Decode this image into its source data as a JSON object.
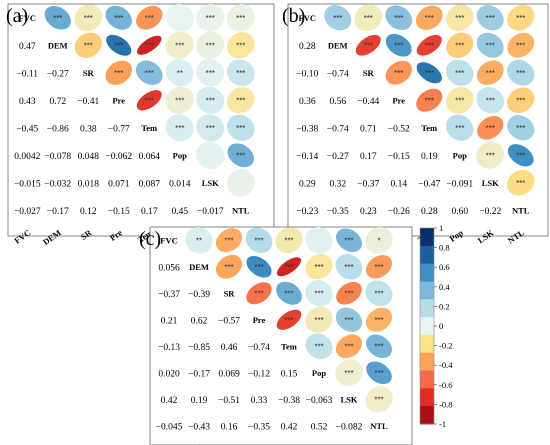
{
  "variables": [
    "FVC",
    "DEM",
    "SR",
    "Pre",
    "Tem",
    "Pop",
    "LSK",
    "NTL"
  ],
  "colorbar": {
    "ticks": [
      "1",
      "0.8",
      "0.6",
      "0.4",
      "0.2",
      "0",
      "-0.2",
      "-0.4",
      "-0.6",
      "-0.8",
      "-1"
    ],
    "colors": [
      "#a50f15",
      "#de2d26",
      "#f4694a",
      "#fca35a",
      "#fde28a",
      "#e7f4f2",
      "#b7dde8",
      "#7fb8da",
      "#3f8fc4",
      "#1a5f9c",
      "#08306b"
    ]
  },
  "chart_data": [
    {
      "type": "heatmap",
      "panel": "(a)",
      "variables": [
        "FVC",
        "DEM",
        "SR",
        "Pre",
        "Tem",
        "Pop",
        "LSK",
        "NTL"
      ],
      "values": [
        [
          1,
          0.47,
          -0.11,
          0.43,
          -0.45,
          0.0042,
          -0.015,
          -0.027
        ],
        [
          0.47,
          1,
          -0.27,
          0.72,
          -0.86,
          -0.078,
          -0.032,
          -0.17
        ],
        [
          -0.11,
          -0.27,
          1,
          -0.41,
          0.38,
          0.048,
          0.018,
          0.12
        ],
        [
          0.43,
          0.72,
          -0.41,
          1,
          -0.77,
          -0.062,
          0.071,
          -0.15
        ],
        [
          -0.45,
          -0.86,
          0.38,
          -0.77,
          1,
          0.064,
          0.087,
          0.17
        ],
        [
          0.0042,
          -0.078,
          0.048,
          -0.062,
          0.064,
          1,
          0.014,
          0.45
        ],
        [
          -0.015,
          -0.032,
          0.018,
          0.071,
          0.087,
          0.014,
          1,
          -0.017
        ],
        [
          -0.027,
          -0.17,
          0.12,
          -0.15,
          0.17,
          0.45,
          -0.017,
          1
        ]
      ],
      "labels": [
        [
          "FVC",
          "***",
          "***",
          "***",
          "***",
          "",
          "***",
          "***"
        ],
        [
          "0.47",
          "DEM",
          "***",
          "***",
          "***",
          "***",
          "***",
          "***"
        ],
        [
          "−0.11",
          "−0.27",
          "SR",
          "***",
          "***",
          "**",
          "***",
          "***"
        ],
        [
          "0.43",
          "0.72",
          "−0.41",
          "Pre",
          "***",
          "***",
          "***",
          "***"
        ],
        [
          "−0.45",
          "−0.86",
          "0.38",
          "−0.77",
          "Tem",
          "***",
          "***",
          "***"
        ],
        [
          "0.0042",
          "−0.078",
          "0.048",
          "−0.062",
          "0.064",
          "Pop",
          "",
          "***"
        ],
        [
          "−0.015",
          "−0.032",
          "0.018",
          "0.071",
          "0.087",
          "0.014",
          "LSK",
          ""
        ],
        [
          "−0.027",
          "−0.17",
          "0.12",
          "−0.15",
          "0.17",
          "0.45",
          "−0.017",
          "NTL"
        ]
      ]
    },
    {
      "type": "heatmap",
      "panel": "(b)",
      "variables": [
        "FVC",
        "DEM",
        "SR",
        "Pre",
        "Tem",
        "Pop",
        "LSK",
        "NTL"
      ],
      "values": [
        [
          1,
          0.28,
          -0.1,
          0.36,
          -0.38,
          -0.14,
          0.29,
          -0.23
        ],
        [
          0.28,
          1,
          -0.74,
          0.56,
          -0.74,
          -0.27,
          0.32,
          -0.35
        ],
        [
          -0.1,
          -0.74,
          1,
          -0.44,
          0.71,
          0.17,
          -0.37,
          0.23
        ],
        [
          0.36,
          0.56,
          -0.44,
          1,
          -0.52,
          -0.15,
          0.14,
          -0.26
        ],
        [
          -0.38,
          -0.74,
          0.71,
          -0.52,
          1,
          0.19,
          -0.47,
          0.28
        ],
        [
          -0.14,
          -0.27,
          0.17,
          -0.15,
          0.19,
          1,
          -0.091,
          0.6
        ],
        [
          0.29,
          0.32,
          -0.37,
          0.14,
          -0.47,
          -0.091,
          1,
          -0.22
        ],
        [
          -0.23,
          -0.35,
          0.23,
          -0.26,
          0.28,
          0.6,
          -0.22,
          1
        ]
      ],
      "labels": [
        [
          "FVC",
          "***",
          "***",
          "***",
          "***",
          "***",
          "***",
          "***"
        ],
        [
          "0.28",
          "DEM",
          "***",
          "***",
          "***",
          "***",
          "***",
          "***"
        ],
        [
          "−0.10",
          "−0.74",
          "SR",
          "***",
          "***",
          "***",
          "***",
          "***"
        ],
        [
          "0.36",
          "0.56",
          "−0.44",
          "Pre",
          "***",
          "***",
          "***",
          "***"
        ],
        [
          "−0.38",
          "−0.74",
          "0.71",
          "−0.52",
          "Tem",
          "***",
          "***",
          "***"
        ],
        [
          "−0.14",
          "−0.27",
          "0.17",
          "−0.15",
          "0.19",
          "Pop",
          "***",
          "***"
        ],
        [
          "0.29",
          "0.32",
          "−0.37",
          "0.14",
          "−0.47",
          "−0.091",
          "LSK",
          "***"
        ],
        [
          "−0.23",
          "−0.35",
          "0.23",
          "−0.26",
          "0.28",
          "0.60",
          "−0.22",
          "NTL"
        ]
      ]
    },
    {
      "type": "heatmap",
      "panel": "(c)",
      "variables": [
        "FVC",
        "DEM",
        "SR",
        "Pre",
        "Tem",
        "Pop",
        "LSK",
        "NTL"
      ],
      "values": [
        [
          1,
          0.056,
          -0.37,
          0.21,
          -0.13,
          0.02,
          0.42,
          -0.045
        ],
        [
          0.056,
          1,
          -0.39,
          0.62,
          -0.85,
          -0.17,
          0.19,
          -0.43
        ],
        [
          -0.37,
          -0.39,
          1,
          -0.57,
          0.46,
          0.069,
          -0.51,
          0.16
        ],
        [
          0.21,
          0.62,
          -0.57,
          1,
          -0.74,
          -0.12,
          0.33,
          -0.35
        ],
        [
          -0.13,
          -0.85,
          0.46,
          -0.74,
          1,
          0.15,
          -0.38,
          0.42
        ],
        [
          0.02,
          -0.17,
          0.069,
          -0.12,
          0.15,
          1,
          -0.063,
          0.52
        ],
        [
          0.42,
          0.19,
          -0.51,
          0.33,
          -0.38,
          -0.063,
          1,
          -0.082
        ],
        [
          -0.045,
          -0.43,
          0.16,
          -0.35,
          0.42,
          0.52,
          -0.082,
          1
        ]
      ],
      "labels": [
        [
          "FVC",
          "**",
          "***",
          "***",
          "***",
          "",
          "***",
          "*"
        ],
        [
          "0.056",
          "DEM",
          "***",
          "***",
          "***",
          "***",
          "***",
          "***"
        ],
        [
          "−0.37",
          "−0.39",
          "SR",
          "***",
          "***",
          "***",
          "***",
          "***"
        ],
        [
          "0.21",
          "0.62",
          "−0.57",
          "Pre",
          "***",
          "***",
          "***",
          "***"
        ],
        [
          "−0.13",
          "−0.85",
          "0.46",
          "−0.74",
          "Tem",
          "***",
          "***",
          "***"
        ],
        [
          "0.020",
          "−0.17",
          "0.069",
          "−0.12",
          "0.15",
          "Pop",
          "***",
          "***"
        ],
        [
          "0.42",
          "0.19",
          "−0.51",
          "0.33",
          "−0.38",
          "−0.063",
          "LSK",
          "***"
        ],
        [
          "−0.045",
          "−0.43",
          "0.16",
          "−0.35",
          "0.42",
          "0.52",
          "−0.082",
          "NTL"
        ]
      ]
    }
  ]
}
